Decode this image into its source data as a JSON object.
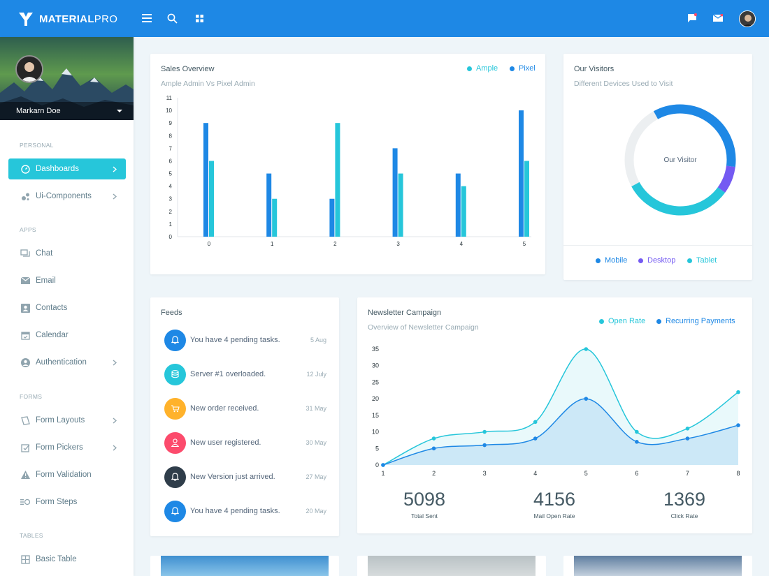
{
  "brand": {
    "name_bold": "MATERIAL",
    "name_thin": "PRO"
  },
  "topbar": {
    "icons": [
      "menu-icon",
      "search-icon",
      "grid-icon",
      "message-icon",
      "mail-icon",
      "user-avatar"
    ]
  },
  "profile": {
    "name": "Markarn Doe"
  },
  "sidebar": {
    "caption_personal": "PERSONAL",
    "caption_apps": "APPS",
    "caption_forms": "FORMS",
    "caption_tables": "TABLES",
    "items": [
      {
        "label": "Dashboards",
        "icon": "dashboard-icon",
        "arrow": true,
        "active": true
      },
      {
        "label": "Ui-Components",
        "icon": "components-icon",
        "arrow": true
      },
      {
        "label": "Chat",
        "icon": "chat-icon"
      },
      {
        "label": "Email",
        "icon": "mail-icon"
      },
      {
        "label": "Contacts",
        "icon": "contacts-icon"
      },
      {
        "label": "Calendar",
        "icon": "calendar-icon"
      },
      {
        "label": "Authentication",
        "icon": "account-icon",
        "arrow": true
      },
      {
        "label": "Form Layouts",
        "icon": "layout-icon",
        "arrow": true
      },
      {
        "label": "Form Pickers",
        "icon": "picker-icon",
        "arrow": true
      },
      {
        "label": "Form Validation",
        "icon": "warning-icon"
      },
      {
        "label": "Form Steps",
        "icon": "steps-icon"
      },
      {
        "label": "Basic Table",
        "icon": "table-icon"
      }
    ]
  },
  "sales": {
    "title": "Sales Overview",
    "subtitle": "Ample Admin Vs Pixel Admin",
    "legend": [
      "Ample",
      "Pixel"
    ]
  },
  "visitors": {
    "title": "Our Visitors",
    "subtitle": "Different Devices Used to Visit",
    "center_label": "Our Visitor",
    "legend": [
      "Mobile",
      "Desktop",
      "Tablet"
    ]
  },
  "feeds": {
    "title": "Feeds",
    "items": [
      {
        "text": "You have 4 pending tasks.",
        "date": "5 Aug",
        "color": "#1e88e5",
        "icon": "bell-icon"
      },
      {
        "text": "Server #1 overloaded.",
        "date": "12 July",
        "color": "#26c6da",
        "icon": "database-icon"
      },
      {
        "text": "New order received.",
        "date": "31 May",
        "color": "#ffb22b",
        "icon": "cart-icon"
      },
      {
        "text": "New user registered.",
        "date": "30 May",
        "color": "#fc4b6c",
        "icon": "user-icon"
      },
      {
        "text": "New Version just arrived.",
        "date": "27 May",
        "color": "#2f3d4a",
        "icon": "bell-icon"
      },
      {
        "text": "You have 4 pending tasks.",
        "date": "20 May",
        "color": "#1e88e5",
        "icon": "bell-icon"
      }
    ]
  },
  "newsletter": {
    "title": "Newsletter Campaign",
    "subtitle": "Overview of Newsletter Campaign",
    "legend": [
      "Open Rate",
      "Recurring Payments"
    ],
    "stats": [
      {
        "value": "5098",
        "label": "Total Sent"
      },
      {
        "value": "4156",
        "label": "Mail Open Rate"
      },
      {
        "value": "1369",
        "label": "Click Rate"
      }
    ]
  },
  "colors": {
    "blue": "#1e88e5",
    "cyan": "#26c6da",
    "purple": "#745af2",
    "grey": "#eceff1"
  },
  "chart_data": [
    {
      "type": "bar",
      "categories": [
        "0",
        "1",
        "2",
        "3",
        "4",
        "5"
      ],
      "series": [
        {
          "name": "Ample",
          "values": [
            9,
            5,
            3,
            7,
            5,
            10
          ]
        },
        {
          "name": "Pixel",
          "values": [
            6,
            3,
            9,
            5,
            4,
            6
          ]
        }
      ],
      "ylim": [
        0,
        11
      ],
      "yticks": [
        0,
        1,
        2,
        3,
        4,
        5,
        6,
        7,
        8,
        9,
        10,
        11
      ]
    },
    {
      "type": "pie",
      "categories": [
        "Mobile",
        "Desktop",
        "Tablet"
      ],
      "values": [
        35,
        8,
        32
      ],
      "remainder": 25
    },
    {
      "type": "area",
      "x": [
        1,
        2,
        3,
        4,
        5,
        6,
        7,
        8
      ],
      "series": [
        {
          "name": "Open Rate",
          "values": [
            0,
            8,
            10,
            13,
            35,
            10,
            11,
            22
          ]
        },
        {
          "name": "Recurring Payments",
          "values": [
            0,
            5,
            6,
            8,
            20,
            7,
            8,
            12
          ]
        }
      ],
      "ylim": [
        0,
        35
      ],
      "yticks": [
        0,
        5,
        10,
        15,
        20,
        25,
        30,
        35
      ]
    }
  ]
}
